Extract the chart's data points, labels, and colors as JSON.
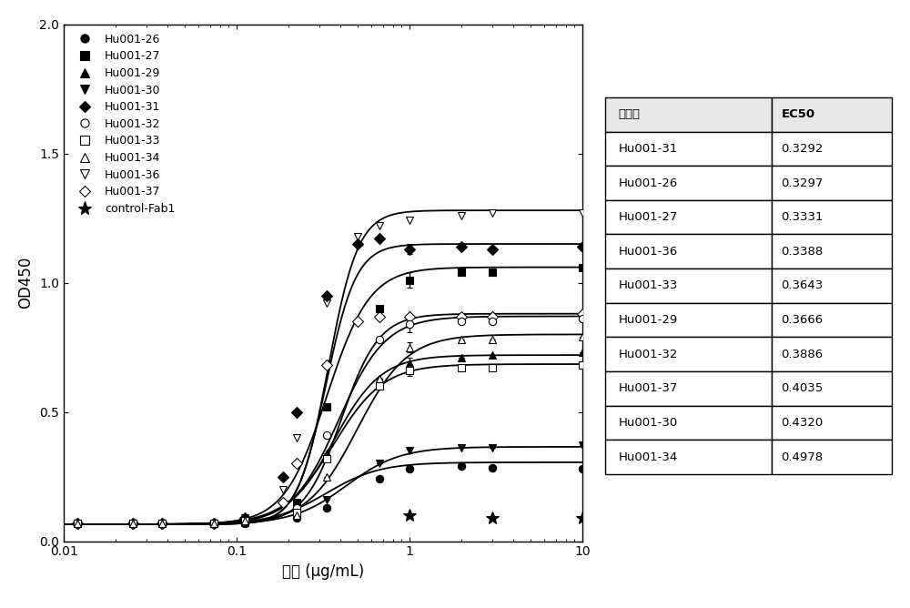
{
  "series": [
    {
      "label": "Hu001-26",
      "marker": "o",
      "fillstyle": "full",
      "ec50": 0.3297,
      "bottom": 0.065,
      "top": 0.305,
      "hill": 2.8,
      "data_x": [
        0.012,
        0.025,
        0.037,
        0.074,
        0.111,
        0.222,
        0.333,
        0.667,
        1.0,
        2.0,
        3.0,
        10.0
      ],
      "data_y": [
        0.07,
        0.07,
        0.07,
        0.07,
        0.07,
        0.09,
        0.13,
        0.24,
        0.28,
        0.29,
        0.285,
        0.28
      ],
      "yerr": [
        0.0,
        0.0,
        0.0,
        0.0,
        0.0,
        0.0,
        0.0,
        0.0,
        0.01,
        0.0,
        0.0,
        0.0
      ]
    },
    {
      "label": "Hu001-27",
      "marker": "s",
      "fillstyle": "full",
      "ec50": 0.3331,
      "bottom": 0.065,
      "top": 1.06,
      "hill": 3.5,
      "data_x": [
        0.012,
        0.025,
        0.037,
        0.074,
        0.111,
        0.222,
        0.333,
        0.667,
        1.0,
        2.0,
        3.0,
        10.0
      ],
      "data_y": [
        0.07,
        0.07,
        0.07,
        0.07,
        0.08,
        0.15,
        0.52,
        0.9,
        1.01,
        1.04,
        1.04,
        1.06
      ],
      "yerr": [
        0.0,
        0.0,
        0.0,
        0.0,
        0.0,
        0.0,
        0.0,
        0.0,
        0.03,
        0.0,
        0.0,
        0.0
      ]
    },
    {
      "label": "Hu001-29",
      "marker": "^",
      "fillstyle": "full",
      "ec50": 0.3666,
      "bottom": 0.065,
      "top": 0.72,
      "hill": 3.2,
      "data_x": [
        0.012,
        0.025,
        0.037,
        0.074,
        0.111,
        0.222,
        0.333,
        0.667,
        1.0,
        2.0,
        3.0,
        10.0
      ],
      "data_y": [
        0.07,
        0.07,
        0.07,
        0.07,
        0.08,
        0.12,
        0.34,
        0.63,
        0.69,
        0.71,
        0.72,
        0.73
      ],
      "yerr": [
        0.0,
        0.0,
        0.0,
        0.0,
        0.0,
        0.0,
        0.0,
        0.0,
        0.02,
        0.0,
        0.0,
        0.0
      ]
    },
    {
      "label": "Hu001-30",
      "marker": "v",
      "fillstyle": "full",
      "ec50": 0.432,
      "bottom": 0.065,
      "top": 0.365,
      "hill": 2.8,
      "data_x": [
        0.012,
        0.025,
        0.037,
        0.074,
        0.111,
        0.222,
        0.333,
        0.667,
        1.0,
        2.0,
        3.0,
        10.0
      ],
      "data_y": [
        0.07,
        0.07,
        0.07,
        0.07,
        0.07,
        0.09,
        0.16,
        0.3,
        0.35,
        0.36,
        0.36,
        0.37
      ],
      "yerr": [
        0.0,
        0.0,
        0.0,
        0.0,
        0.0,
        0.0,
        0.0,
        0.0,
        0.01,
        0.0,
        0.0,
        0.0
      ]
    },
    {
      "label": "Hu001-31",
      "marker": "D",
      "fillstyle": "full",
      "ec50": 0.3292,
      "bottom": 0.065,
      "top": 1.15,
      "hill": 5.0,
      "data_x": [
        0.012,
        0.025,
        0.037,
        0.074,
        0.111,
        0.185,
        0.222,
        0.333,
        0.5,
        0.667,
        1.0,
        2.0,
        3.0,
        10.0
      ],
      "data_y": [
        0.07,
        0.07,
        0.07,
        0.07,
        0.09,
        0.25,
        0.5,
        0.95,
        1.15,
        1.17,
        1.13,
        1.14,
        1.13,
        1.14
      ],
      "yerr": [
        0.0,
        0.0,
        0.0,
        0.0,
        0.0,
        0.0,
        0.0,
        0.0,
        0.0,
        0.0,
        0.02,
        0.0,
        0.0,
        0.0
      ]
    },
    {
      "label": "Hu001-32",
      "marker": "o",
      "fillstyle": "none",
      "ec50": 0.3886,
      "bottom": 0.065,
      "top": 0.87,
      "hill": 3.2,
      "data_x": [
        0.012,
        0.025,
        0.037,
        0.074,
        0.111,
        0.222,
        0.333,
        0.667,
        1.0,
        2.0,
        3.0,
        10.0
      ],
      "data_y": [
        0.07,
        0.07,
        0.07,
        0.07,
        0.08,
        0.13,
        0.41,
        0.78,
        0.84,
        0.85,
        0.85,
        0.86
      ],
      "yerr": [
        0.0,
        0.0,
        0.0,
        0.0,
        0.0,
        0.0,
        0.0,
        0.0,
        0.03,
        0.0,
        0.0,
        0.0
      ]
    },
    {
      "label": "Hu001-33",
      "marker": "s",
      "fillstyle": "none",
      "ec50": 0.3643,
      "bottom": 0.065,
      "top": 0.685,
      "hill": 3.0,
      "data_x": [
        0.012,
        0.025,
        0.037,
        0.074,
        0.111,
        0.222,
        0.333,
        0.667,
        1.0,
        2.0,
        3.0,
        10.0
      ],
      "data_y": [
        0.07,
        0.07,
        0.07,
        0.07,
        0.08,
        0.11,
        0.32,
        0.6,
        0.66,
        0.67,
        0.67,
        0.68
      ],
      "yerr": [
        0.0,
        0.0,
        0.0,
        0.0,
        0.0,
        0.0,
        0.0,
        0.0,
        0.02,
        0.0,
        0.0,
        0.0
      ]
    },
    {
      "label": "Hu001-34",
      "marker": "^",
      "fillstyle": "none",
      "ec50": 0.4978,
      "bottom": 0.065,
      "top": 0.8,
      "hill": 3.0,
      "data_x": [
        0.012,
        0.025,
        0.037,
        0.074,
        0.111,
        0.222,
        0.333,
        0.667,
        1.0,
        2.0,
        3.0,
        10.0
      ],
      "data_y": [
        0.07,
        0.07,
        0.07,
        0.07,
        0.08,
        0.1,
        0.25,
        0.63,
        0.75,
        0.78,
        0.78,
        0.79
      ],
      "yerr": [
        0.0,
        0.0,
        0.0,
        0.0,
        0.0,
        0.0,
        0.0,
        0.0,
        0.02,
        0.0,
        0.0,
        0.0
      ]
    },
    {
      "label": "Hu001-36",
      "marker": "v",
      "fillstyle": "none",
      "ec50": 0.3388,
      "bottom": 0.065,
      "top": 1.28,
      "hill": 5.0,
      "data_x": [
        0.012,
        0.025,
        0.037,
        0.074,
        0.111,
        0.185,
        0.222,
        0.333,
        0.5,
        0.667,
        1.0,
        2.0,
        3.0,
        10.0
      ],
      "data_y": [
        0.07,
        0.07,
        0.07,
        0.07,
        0.09,
        0.2,
        0.4,
        0.92,
        1.18,
        1.22,
        1.24,
        1.26,
        1.27,
        1.27
      ],
      "yerr": [
        0.0,
        0.0,
        0.0,
        0.0,
        0.0,
        0.0,
        0.0,
        0.0,
        0.0,
        0.0,
        0.0,
        0.0,
        0.0,
        0.0
      ]
    },
    {
      "label": "Hu001-37",
      "marker": "D",
      "fillstyle": "none",
      "ec50": 0.4035,
      "bottom": 0.065,
      "top": 0.88,
      "hill": 4.0,
      "data_x": [
        0.012,
        0.025,
        0.037,
        0.074,
        0.111,
        0.185,
        0.222,
        0.333,
        0.5,
        0.667,
        1.0,
        2.0,
        3.0,
        10.0
      ],
      "data_y": [
        0.07,
        0.07,
        0.07,
        0.07,
        0.08,
        0.15,
        0.3,
        0.68,
        0.85,
        0.87,
        0.87,
        0.87,
        0.87,
        0.88
      ],
      "yerr": [
        0.0,
        0.0,
        0.0,
        0.0,
        0.0,
        0.0,
        0.0,
        0.0,
        0.0,
        0.0,
        0.0,
        0.0,
        0.0,
        0.0
      ]
    },
    {
      "label": "control-Fab1",
      "marker": "*",
      "fillstyle": "full",
      "ec50": null,
      "bottom": 0.07,
      "top": 0.07,
      "hill": 1.0,
      "data_x": [
        0.111,
        1.0,
        3.0,
        10.0
      ],
      "data_y": [
        0.08,
        0.1,
        0.09,
        0.09
      ],
      "yerr": [
        0.0,
        0.0,
        0.0,
        0.0
      ]
    }
  ],
  "table_data": [
    [
      "Hu001-31",
      "0.3292"
    ],
    [
      "Hu001-26",
      "0.3297"
    ],
    [
      "Hu001-27",
      "0.3331"
    ],
    [
      "Hu001-36",
      "0.3388"
    ],
    [
      "Hu001-33",
      "0.3643"
    ],
    [
      "Hu001-29",
      "0.3666"
    ],
    [
      "Hu001-32",
      "0.3886"
    ],
    [
      "Hu001-37",
      "0.4035"
    ],
    [
      "Hu001-30",
      "0.4320"
    ],
    [
      "Hu001-34",
      "0.4978"
    ]
  ],
  "table_headers": [
    "克隆号",
    "EC50"
  ],
  "xlabel": "浓度 (μg/mL)",
  "ylabel": "OD450",
  "xlim": [
    0.01,
    10.0
  ],
  "ylim": [
    0.0,
    2.0
  ],
  "yticks": [
    0.0,
    0.5,
    1.0,
    1.5,
    2.0
  ],
  "xticks": [
    0.01,
    0.1,
    1,
    10
  ],
  "xtick_labels": [
    "0.01",
    "0.1",
    "1",
    "10"
  ],
  "background_color": "#ffffff"
}
